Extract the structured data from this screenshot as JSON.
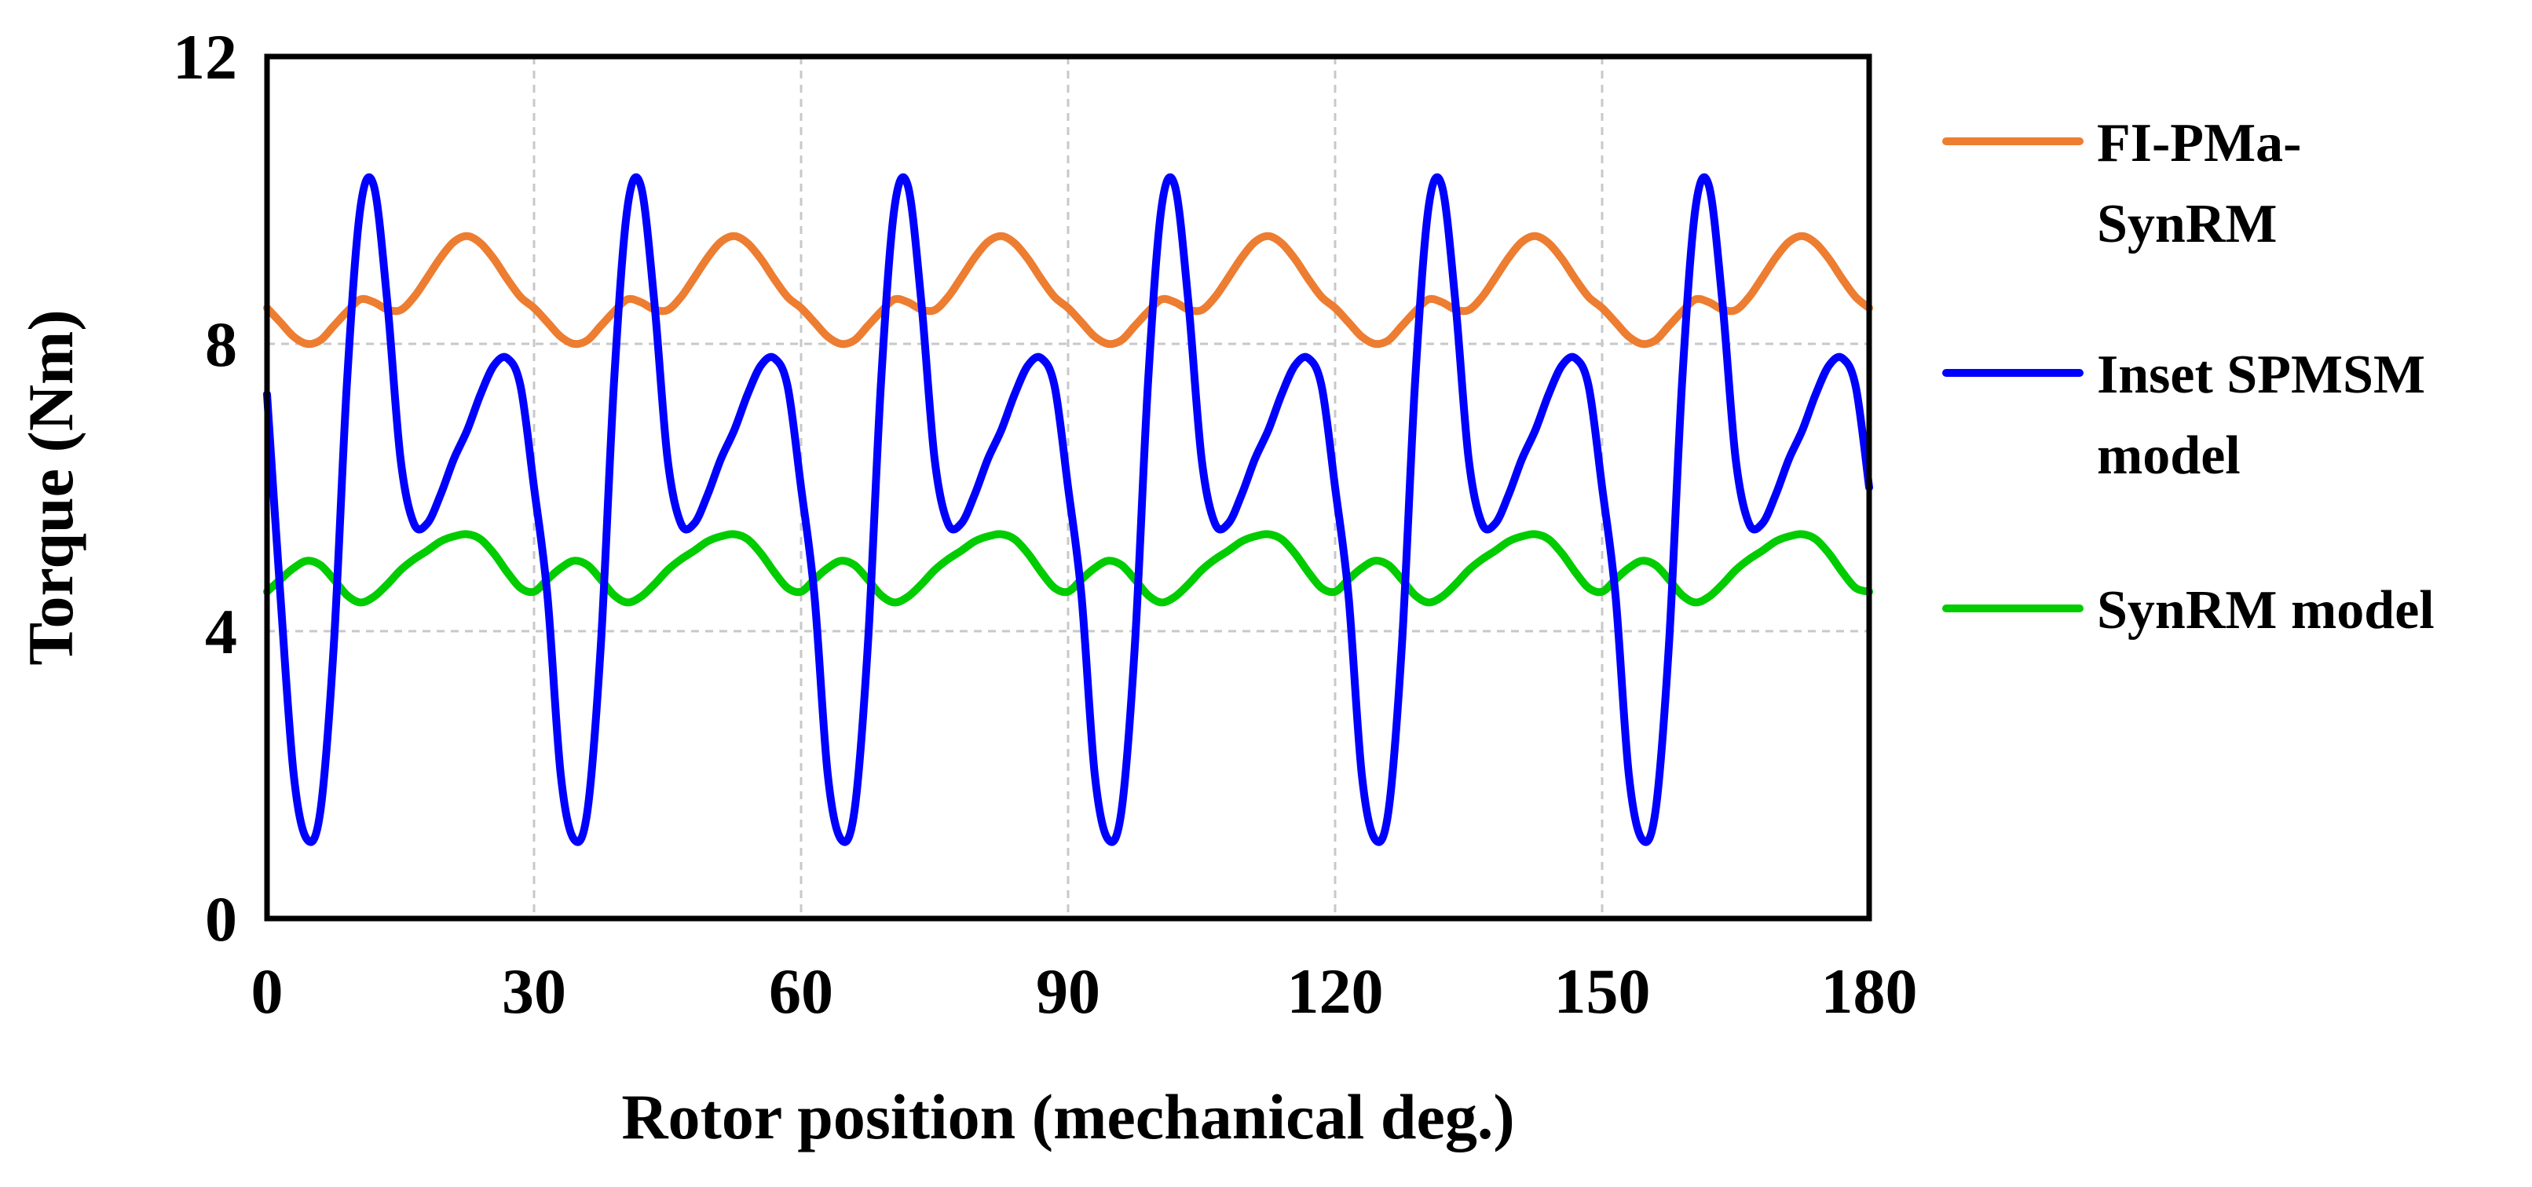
{
  "chart_data": {
    "type": "line",
    "title": "",
    "xlabel": "Rotor position (mechanical deg.)",
    "ylabel": "Torque (Nm)",
    "xlim": [
      0,
      180
    ],
    "ylim": [
      0,
      12
    ],
    "x_ticks": [
      "0",
      "30",
      "60",
      "90",
      "120",
      "150",
      "180"
    ],
    "y_ticks": [
      "0",
      "4",
      "8",
      "12"
    ],
    "grid": true,
    "legend_position": "right",
    "x": [
      0,
      1.5,
      3,
      4.5,
      6,
      7.5,
      9,
      10.5,
      12,
      13.5,
      15,
      16.5,
      18,
      19.5,
      21,
      22.5,
      24,
      25.5,
      27,
      28.5,
      30
    ],
    "series": [
      {
        "name": "FI-PMa-SynRM",
        "legend_lines": [
          "FI-PMa-",
          "SynRM"
        ],
        "color": "#ED7D31",
        "values": [
          8.5,
          8.3,
          8.1,
          8.0,
          8.05,
          8.25,
          8.45,
          8.62,
          8.58,
          8.48,
          8.47,
          8.65,
          8.92,
          9.2,
          9.42,
          9.5,
          9.4,
          9.18,
          8.9,
          8.65,
          8.5
        ]
      },
      {
        "name": "Inset SPMSM model",
        "legend_lines": [
          "Inset SPMSM",
          "model"
        ],
        "color": "#0000FF",
        "values": [
          7.3,
          4.5,
          2.0,
          1.1,
          1.5,
          3.8,
          7.5,
          9.9,
          10.2,
          8.6,
          6.4,
          5.5,
          5.5,
          5.9,
          6.4,
          6.8,
          7.3,
          7.7,
          7.8,
          7.4,
          6.0
        ]
      },
      {
        "name": "SynRM model",
        "legend_lines": [
          "SynRM model"
        ],
        "color": "#00CC00",
        "values": [
          4.55,
          4.72,
          4.88,
          4.98,
          4.92,
          4.72,
          4.5,
          4.4,
          4.48,
          4.65,
          4.85,
          5.0,
          5.12,
          5.25,
          5.32,
          5.35,
          5.28,
          5.08,
          4.82,
          4.6,
          4.55
        ]
      }
    ],
    "series_note": "values listed for one 30-degree period; the waveform repeats every 30 mechanical degrees over 0-180"
  }
}
